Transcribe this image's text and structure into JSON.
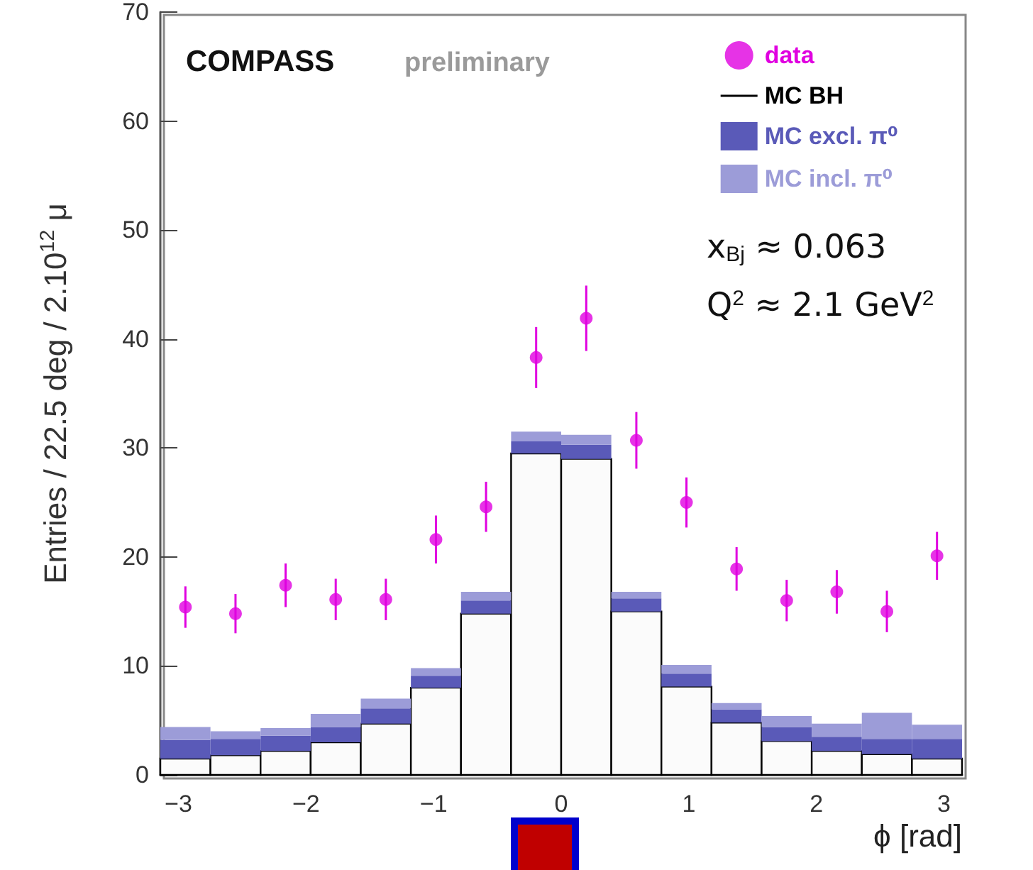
{
  "chart_data": {
    "type": "bar",
    "xlabel": "ϕ [rad]",
    "ylabel": "Entries / 22.5 deg / 2.10$^{12}$ μ",
    "annotations": [
      "COMPASS",
      "preliminary",
      "x$_{Bj}$ ≈ 0.063",
      "Q$^{2}$ ≈ 2.1 GeV$^{2}$"
    ],
    "x": [
      -2.9452,
      -2.5525,
      -2.1598,
      -1.7671,
      -1.3744,
      -0.9817,
      -0.589,
      -0.1963,
      0.1963,
      0.589,
      0.9817,
      1.3744,
      1.7671,
      2.1598,
      2.5525,
      2.9452
    ],
    "stacked": true,
    "series": [
      {
        "name": "data",
        "type": "scatter",
        "color": "#e000e0",
        "marker": "circle",
        "values": [
          15.4,
          14.8,
          17.4,
          16.1,
          16.1,
          21.6,
          24.6,
          38.3,
          41.9,
          30.7,
          25.0,
          18.9,
          16.0,
          16.8,
          15.0,
          20.1
        ],
        "errors": [
          1.9,
          1.8,
          2.0,
          1.9,
          1.9,
          2.2,
          2.3,
          2.8,
          3.0,
          2.6,
          2.3,
          2.0,
          1.9,
          2.0,
          1.9,
          2.2
        ]
      },
      {
        "name": "MC BH",
        "color": "#000000",
        "values": [
          1.5,
          1.8,
          2.2,
          3.0,
          4.7,
          8.0,
          14.8,
          29.5,
          29.0,
          15.0,
          8.1,
          4.8,
          3.1,
          2.2,
          1.9,
          1.5
        ]
      },
      {
        "name": "MC excl. π⁰",
        "color": "#5a5ab8",
        "values": [
          1.7,
          1.5,
          1.4,
          1.4,
          1.4,
          1.1,
          1.2,
          1.1,
          1.3,
          1.2,
          1.2,
          1.2,
          1.3,
          1.3,
          1.4,
          1.8
        ]
      },
      {
        "name": "MC incl. π⁰",
        "color": "#9c9cd8",
        "values": [
          1.2,
          0.7,
          0.7,
          1.2,
          0.9,
          0.7,
          0.8,
          0.9,
          0.9,
          0.6,
          0.8,
          0.6,
          1.0,
          1.2,
          2.4,
          1.3
        ]
      }
    ],
    "xlim": [
      -3.1416,
      3.1416
    ],
    "xticks": [
      -3,
      -2,
      -1,
      0,
      1,
      2,
      3
    ],
    "ylim": [
      0,
      70
    ],
    "yticks": [
      0,
      10,
      20,
      30,
      40,
      50,
      60,
      70
    ],
    "grid": false,
    "legend": "top right"
  }
}
